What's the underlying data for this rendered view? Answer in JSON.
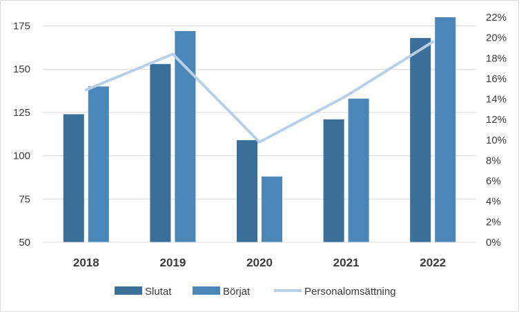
{
  "chart_data": {
    "type": "bar",
    "categories": [
      "2018",
      "2019",
      "2020",
      "2021",
      "2022"
    ],
    "series": [
      {
        "name": "Slutat",
        "kind": "bar",
        "axis": "left",
        "color": "#3a6f9a",
        "values": [
          124,
          153,
          109,
          121,
          168
        ]
      },
      {
        "name": "Börjat",
        "kind": "bar",
        "axis": "left",
        "color": "#4a86b8",
        "values": [
          140,
          172,
          88,
          133,
          180
        ]
      },
      {
        "name": "Personalomsättning",
        "kind": "line",
        "axis": "right",
        "color": "#b8cfe6",
        "values": [
          0.149,
          0.184,
          0.098,
          0.143,
          0.196
        ]
      }
    ],
    "ylim_left": [
      50,
      180
    ],
    "yticks_left": [
      50,
      75,
      100,
      125,
      150,
      175
    ],
    "ylim_right": [
      0,
      0.22
    ],
    "yticks_right": [
      0,
      0.02,
      0.04,
      0.06,
      0.08,
      0.1,
      0.12,
      0.14,
      0.16,
      0.18,
      0.2,
      0.22
    ],
    "yticks_right_labels": [
      "0%",
      "2%",
      "4%",
      "6%",
      "8%",
      "10%",
      "12%",
      "14%",
      "16%",
      "18%",
      "20%",
      "22%"
    ],
    "grid": true,
    "legend_position": "bottom"
  }
}
